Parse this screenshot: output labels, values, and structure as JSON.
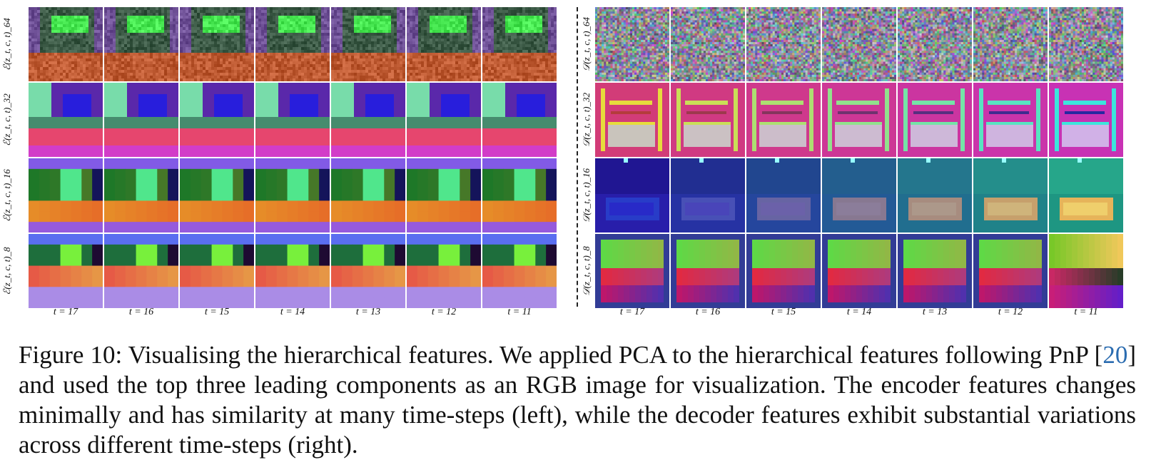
{
  "figure": {
    "encoder_row_labels": [
      "ℰ(z_t, c, t)_64",
      "ℰ(z_t, c, t)_32",
      "ℰ(z_t, c, t)_16",
      "ℰ(z_t, c, t)_8"
    ],
    "decoder_row_labels": [
      "𝒟(z_t, c, t)_64",
      "𝒟(z_t, c, t)_32",
      "𝒟(z_t, c, t)_16",
      "𝒟(z_t, c, t)_8"
    ],
    "timesteps": [
      "t = 17",
      "t = 16",
      "t = 15",
      "t = 14",
      "t = 13",
      "t = 12",
      "t = 11"
    ]
  },
  "caption": {
    "label": "Figure 10:",
    "text_before_ref": "Visualising the hierarchical features. We applied PCA to the hierarchical features following PnP [",
    "ref": "20",
    "text_after_ref": "] and used the top three leading components as an RGB image for visualization. The encoder features changes minimally and has similarity at many time-steps (left), while the decoder features exhibit substantial variations across different time-steps (right)."
  },
  "colors": {
    "citation_link": "#2b6cb0"
  }
}
